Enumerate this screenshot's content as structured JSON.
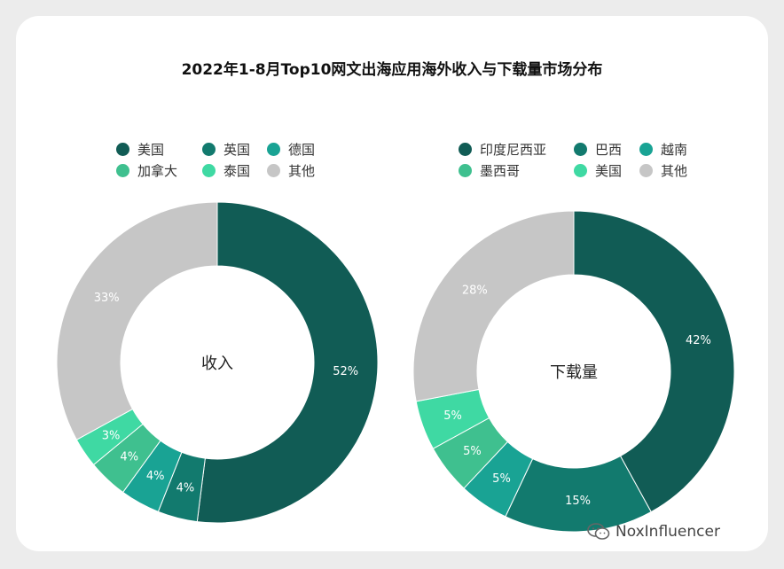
{
  "title": "2022年1-8月Top10网文出海应用海外收入与下载量市场分布",
  "watermark_text": "NoxInfluencer",
  "watermark_icon": "wechat-icon",
  "chart_data": [
    {
      "type": "pie",
      "center_label": "收入",
      "legend": [
        "美国",
        "英国",
        "德国",
        "加拿大",
        "泰国",
        "其他"
      ],
      "categories": [
        "美国",
        "英国",
        "德国",
        "加拿大",
        "泰国",
        "其他"
      ],
      "values": [
        52,
        4,
        4,
        4,
        3,
        33
      ],
      "labels": [
        "52%",
        "4%",
        "4%",
        "4%",
        "3%",
        "33%"
      ],
      "colors": [
        "#115c55",
        "#127a6e",
        "#19a394",
        "#3fc08f",
        "#3fd9a3",
        "#c6c6c6"
      ],
      "donut": true
    },
    {
      "type": "pie",
      "center_label": "下载量",
      "legend": [
        "印度尼西亚",
        "巴西",
        "越南",
        "墨西哥",
        "美国",
        "其他"
      ],
      "categories": [
        "印度尼西亚",
        "巴西",
        "越南",
        "墨西哥",
        "美国",
        "其他"
      ],
      "values": [
        42,
        15,
        5,
        5,
        5,
        28
      ],
      "labels": [
        "42%",
        "15%",
        "5%",
        "5%",
        "5%",
        "28%"
      ],
      "colors": [
        "#115c55",
        "#127a6e",
        "#19a394",
        "#3fc08f",
        "#3fd9a3",
        "#c6c6c6"
      ],
      "donut": true
    }
  ]
}
